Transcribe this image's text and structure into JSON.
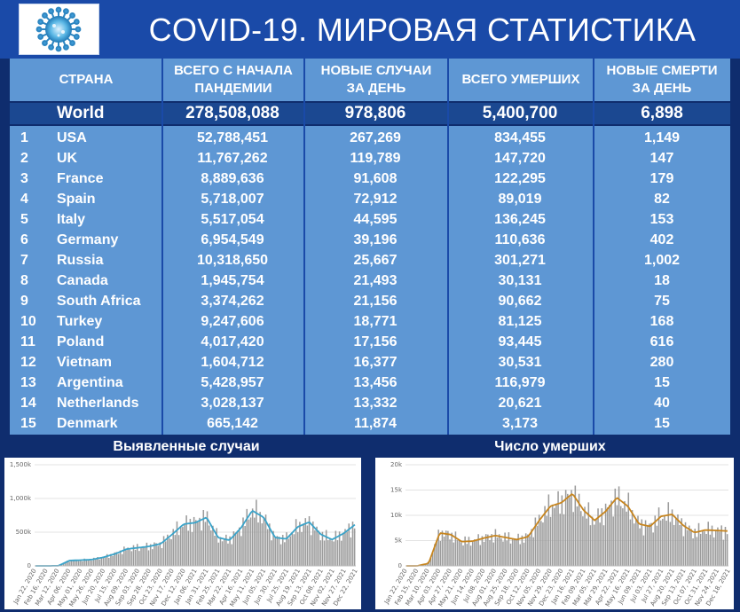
{
  "header": {
    "logo_icon": "coronavirus-icon",
    "title": "COVID-19. МИРОВАЯ СТАТИСТИКА"
  },
  "table": {
    "columns": {
      "country": "СТРАНА",
      "total_cases": "ВСЕГО С НАЧАЛА ПАНДЕМИИ",
      "new_cases": "НОВЫЕ СЛУЧАИ ЗА ДЕНЬ",
      "total_deaths": "ВСЕГО УМЕРШИХ",
      "new_deaths": "НОВЫЕ СМЕРТИ ЗА ДЕНЬ"
    },
    "world": {
      "country": "World",
      "total_cases": "278,508,088",
      "new_cases": "978,806",
      "total_deaths": "5,400,700",
      "new_deaths": "6,898"
    },
    "rows": [
      {
        "rank": "1",
        "country": "USA",
        "total_cases": "52,788,451",
        "new_cases": "267,269",
        "total_deaths": "834,455",
        "new_deaths": "1,149"
      },
      {
        "rank": "2",
        "country": "UK",
        "total_cases": "11,767,262",
        "new_cases": "119,789",
        "total_deaths": "147,720",
        "new_deaths": "147"
      },
      {
        "rank": "3",
        "country": "France",
        "total_cases": "8,889,636",
        "new_cases": "91,608",
        "total_deaths": "122,295",
        "new_deaths": "179"
      },
      {
        "rank": "4",
        "country": "Spain",
        "total_cases": "5,718,007",
        "new_cases": "72,912",
        "total_deaths": "89,019",
        "new_deaths": "82"
      },
      {
        "rank": "5",
        "country": "Italy",
        "total_cases": "5,517,054",
        "new_cases": "44,595",
        "total_deaths": "136,245",
        "new_deaths": "153"
      },
      {
        "rank": "6",
        "country": "Germany",
        "total_cases": "6,954,549",
        "new_cases": "39,196",
        "total_deaths": "110,636",
        "new_deaths": "402"
      },
      {
        "rank": "7",
        "country": "Russia",
        "total_cases": "10,318,650",
        "new_cases": "25,667",
        "total_deaths": "301,271",
        "new_deaths": "1,002"
      },
      {
        "rank": "8",
        "country": "Canada",
        "total_cases": "1,945,754",
        "new_cases": "21,493",
        "total_deaths": "30,131",
        "new_deaths": "18"
      },
      {
        "rank": "9",
        "country": "South Africa",
        "total_cases": "3,374,262",
        "new_cases": "21,156",
        "total_deaths": "90,662",
        "new_deaths": "75"
      },
      {
        "rank": "10",
        "country": "Turkey",
        "total_cases": "9,247,606",
        "new_cases": "18,771",
        "total_deaths": "81,125",
        "new_deaths": "168"
      },
      {
        "rank": "11",
        "country": "Poland",
        "total_cases": "4,017,420",
        "new_cases": "17,156",
        "total_deaths": "93,445",
        "new_deaths": "616"
      },
      {
        "rank": "12",
        "country": "Vietnam",
        "total_cases": "1,604,712",
        "new_cases": "16,377",
        "total_deaths": "30,531",
        "new_deaths": "280"
      },
      {
        "rank": "13",
        "country": "Argentina",
        "total_cases": "5,428,957",
        "new_cases": "13,456",
        "total_deaths": "116,979",
        "new_deaths": "15"
      },
      {
        "rank": "14",
        "country": "Netherlands",
        "total_cases": "3,028,137",
        "new_cases": "13,332",
        "total_deaths": "20,621",
        "new_deaths": "40"
      },
      {
        "rank": "15",
        "country": "Denmark",
        "total_cases": "665,142",
        "new_cases": "11,874",
        "total_deaths": "3,173",
        "new_deaths": "15"
      }
    ]
  },
  "colors": {
    "header_bg": "#1a4aa8",
    "table_bg": "#5e97d4",
    "world_row_bg": "#1b4891",
    "cases_line": "#3aa3c9",
    "deaths_line": "#c7851e",
    "bars": "#9b9b9b"
  },
  "chart_data": [
    {
      "type": "bar",
      "title": "Выявленные случаи",
      "y_ticks": [
        "0",
        "500k",
        "1,000k",
        "1,500k"
      ],
      "ylim": [
        0,
        1500000
      ],
      "x_ticks": [
        "Jan 22, 2020",
        "Feb 16, 2020",
        "Mar 12, 2020",
        "Apr 06, 2020",
        "May 01, 2020",
        "May 26, 2020",
        "Jun 20, 2020",
        "Jul 15, 2020",
        "Aug 09, 2020",
        "Sep 03, 2020",
        "Sep 28, 2020",
        "Oct 23, 2020",
        "Nov 17, 2020",
        "Dec 12, 2020",
        "Jan 06, 2021",
        "Jan 31, 2021",
        "Feb 25, 2021",
        "Mar 22, 2021",
        "Apr 16, 2021",
        "May 11, 2021",
        "Jun 05, 2021",
        "Jun 30, 2021",
        "Jul 25, 2021",
        "Aug 19, 2021",
        "Sep 13, 2021",
        "Oct 08, 2021",
        "Nov 02, 2021",
        "Nov 27, 2021",
        "Dec 22, 2021"
      ],
      "series": [
        {
          "kind": "bars+line",
          "values": [
            0,
            0,
            2000,
            80000,
            85000,
            95000,
            130000,
            180000,
            250000,
            270000,
            290000,
            330000,
            470000,
            620000,
            640000,
            720000,
            420000,
            380000,
            560000,
            820000,
            720000,
            420000,
            400000,
            580000,
            650000,
            470000,
            390000,
            480000,
            610000
          ]
        }
      ]
    },
    {
      "type": "bar",
      "title": "Число умерших",
      "y_ticks": [
        "0",
        "5k",
        "10k",
        "15k",
        "20k"
      ],
      "ylim": [
        0,
        20000
      ],
      "x_ticks": [
        "Jan 22, 2020",
        "Feb 15, 2020",
        "Mar 10, 2020",
        "Apr 03, 2020",
        "Apr 27, 2020",
        "May 21, 2020",
        "Jun 14, 2020",
        "Jul 08, 2020",
        "Aug 01, 2020",
        "Aug 25, 2020",
        "Sep 18, 2020",
        "Oct 12, 2020",
        "Nov 05, 2020",
        "Nov 29, 2020",
        "Dec 23, 2020",
        "Jan 16, 2021",
        "Feb 09, 2021",
        "Mar 05, 2021",
        "Mar 29, 2021",
        "Apr 22, 2021",
        "May 16, 2021",
        "Jun 09, 2021",
        "Jul 03, 2021",
        "Jul 27, 2021",
        "Aug 20, 2021",
        "Sep 13, 2021",
        "Oct 07, 2021",
        "Oct 31, 2021",
        "Nov 24, 2021",
        "Dec 18, 2021"
      ],
      "series": [
        {
          "kind": "bars+line",
          "values": [
            0,
            0,
            500,
            6500,
            6200,
            4800,
            4900,
            5500,
            6000,
            5600,
            5200,
            5800,
            9000,
            11800,
            12500,
            14300,
            11000,
            9000,
            10800,
            13500,
            11800,
            8300,
            7800,
            9800,
            10200,
            8000,
            6600,
            7100,
            7000,
            6900
          ]
        }
      ]
    }
  ]
}
